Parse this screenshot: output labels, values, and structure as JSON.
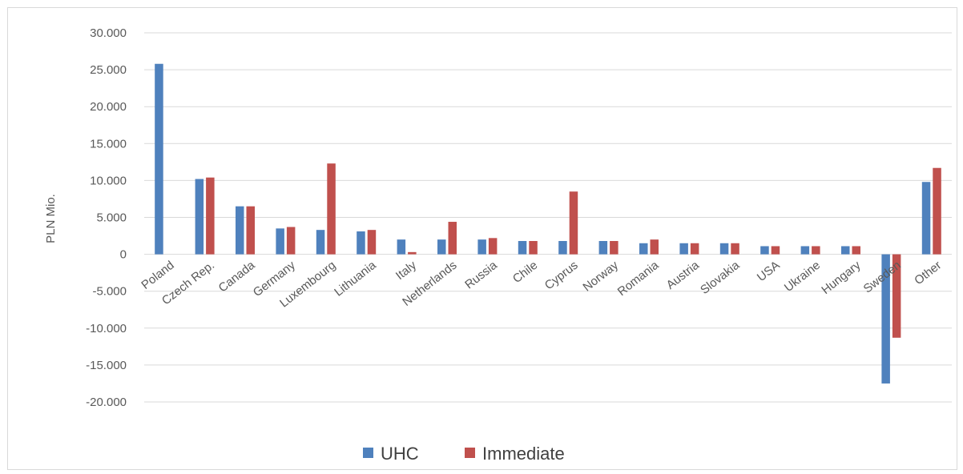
{
  "chart_data": {
    "type": "bar",
    "title": "",
    "xlabel": "",
    "ylabel": "PLN Mio.",
    "ylim": [
      -20000,
      30000
    ],
    "yticks": [
      30000,
      25000,
      20000,
      15000,
      10000,
      5000,
      0,
      -5000,
      -10000,
      -15000,
      -20000
    ],
    "ytick_labels": [
      "30.000",
      "25.000",
      "20.000",
      "15.000",
      "10.000",
      "5.000",
      "0",
      "-5.000",
      "-10.000",
      "-15.000",
      "-20.000"
    ],
    "grid": true,
    "legend_position": "bottom",
    "categories": [
      "Poland",
      "Czech Rep.",
      "Canada",
      "Germany",
      "Luxembourg",
      "Lithuania",
      "Italy",
      "Netherlands",
      "Russia",
      "Chile",
      "Cyprus",
      "Norway",
      "Romania",
      "Austria",
      "Slovakia",
      "USA",
      "Ukraine",
      "Hungary",
      "Sweden",
      "Other"
    ],
    "series": [
      {
        "name": "UHC",
        "color": "#4f81bd",
        "values": [
          25800,
          10200,
          6500,
          3500,
          3300,
          3100,
          2000,
          2000,
          2000,
          1800,
          1800,
          1800,
          1500,
          1500,
          1500,
          1100,
          1100,
          1100,
          -17500,
          9800
        ]
      },
      {
        "name": "Immediate",
        "color": "#c0504d",
        "values": [
          0,
          10400,
          6500,
          3700,
          12300,
          3300,
          300,
          4400,
          2200,
          1800,
          8500,
          1800,
          2000,
          1500,
          1500,
          1100,
          1100,
          1100,
          -11300,
          11700
        ]
      }
    ]
  }
}
